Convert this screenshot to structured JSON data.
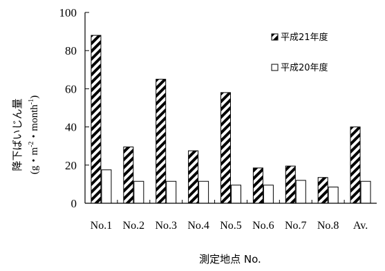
{
  "chart_data": {
    "type": "bar",
    "categories": [
      "No.1",
      "No.2",
      "No.3",
      "No.4",
      "No.5",
      "No.6",
      "No.7",
      "No.8",
      "Av."
    ],
    "series": [
      {
        "name": "平成21年度",
        "values": [
          88,
          29.5,
          65,
          27.5,
          58,
          18.5,
          19.5,
          13.5,
          40
        ],
        "pattern": "diagonal-hatch"
      },
      {
        "name": "平成20年度",
        "values": [
          17.5,
          11.5,
          11.5,
          11.5,
          9.5,
          9.5,
          12,
          8.5,
          11.5
        ],
        "pattern": "white"
      }
    ],
    "ylim": [
      0,
      100
    ],
    "yticks": [
      0,
      20,
      40,
      60,
      80,
      100
    ],
    "ylabel_line1": "降下ばいじん量",
    "ylabel_line2": "(g・m",
    "ylabel_sup1": "-2",
    "ylabel_mid": "・month",
    "ylabel_sup2": "-1",
    "ylabel_end": ")",
    "xlabel": "測定地点  No.",
    "legend_position": "top-right",
    "grid": false
  },
  "colors": {
    "bar_stroke": "#000000",
    "bar_fill": "#ffffff",
    "hatch": "#000000",
    "axis": "#000000"
  }
}
